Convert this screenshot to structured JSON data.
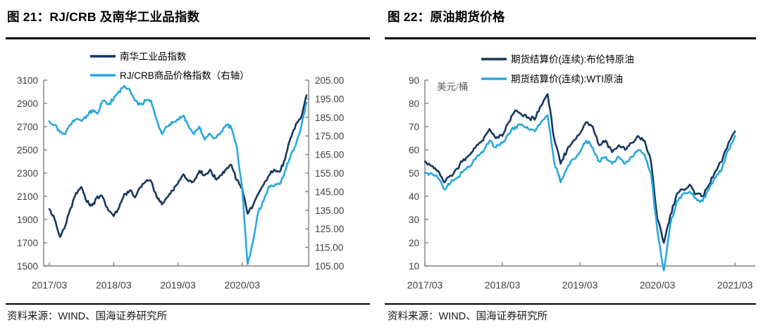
{
  "colors": {
    "navy": "#17375D",
    "blue": "#29A8E0",
    "axis": "#808080",
    "tick_text": "#404040",
    "rule": "#000000"
  },
  "chart_data": [
    {
      "type": "line",
      "title": "图 21：RJ/CRB 及南华工业品指数",
      "source": "资料来源：WIND、国海证券研究所",
      "x_tick_labels": [
        "2017/03",
        "2018/03",
        "2019/03",
        "2020/03"
      ],
      "x_range_months": "2017/03 - 2021/03",
      "grid": "off",
      "legend_position": "top-center",
      "left_axis": {
        "min": 1500,
        "max": 3100,
        "step": 200,
        "labels": [
          "3100",
          "2900",
          "2700",
          "2500",
          "2300",
          "2100",
          "1900",
          "1700",
          "1500"
        ]
      },
      "right_axis": {
        "min": 105,
        "max": 205,
        "step": 10,
        "labels": [
          "205.00",
          "195.00",
          "185.00",
          "175.00",
          "165.00",
          "155.00",
          "145.00",
          "135.00",
          "125.00",
          "115.00",
          "105.00"
        ]
      },
      "legend": [
        {
          "label": "南华工业品指数",
          "color": "navy"
        },
        {
          "label": "RJ/CRB商品价格指数（右轴）",
          "color": "blue"
        }
      ],
      "series": [
        {
          "name": "南华工业品指数",
          "axis": "left",
          "color": "navy",
          "values": [
            1990,
            1900,
            1750,
            1850,
            2000,
            2130,
            2180,
            2050,
            2020,
            2100,
            2090,
            1980,
            1930,
            2000,
            2120,
            2150,
            2090,
            2180,
            2230,
            2230,
            2100,
            2030,
            2090,
            2150,
            2210,
            2290,
            2230,
            2230,
            2320,
            2280,
            2330,
            2250,
            2280,
            2330,
            2370,
            2240,
            2170,
            1950,
            2020,
            2120,
            2200,
            2280,
            2330,
            2310,
            2420,
            2600,
            2720,
            2780,
            2970
          ]
        },
        {
          "name": "RJ/CRB商品价格指数（右轴）",
          "axis": "right",
          "color": "blue",
          "values": [
            183,
            181,
            177,
            176,
            181,
            184,
            183,
            186,
            189,
            187,
            194,
            192,
            195,
            199,
            202,
            200,
            194,
            192,
            194,
            194,
            184,
            176,
            180,
            182,
            184,
            186,
            180,
            176,
            180,
            173,
            176,
            174,
            177,
            181,
            179,
            169,
            146,
            106,
            118,
            134,
            140,
            148,
            148,
            149,
            156,
            164,
            170,
            180,
            193
          ]
        }
      ]
    },
    {
      "type": "line",
      "title": "图 22：原油期货价格",
      "source": "资料来源：WIND、国海证券研究所",
      "unit_label": "美元/桶",
      "x_tick_labels": [
        "2017/03",
        "2018/03",
        "2019/03",
        "2020/03",
        "2021/03"
      ],
      "x_range_months": "2017/03 - 2021/03",
      "grid": "off",
      "legend_position": "top-center",
      "y_axis": {
        "min": 10,
        "max": 90,
        "step": 10,
        "labels": [
          "90",
          "80",
          "70",
          "60",
          "50",
          "40",
          "30",
          "20",
          "10"
        ]
      },
      "legend": [
        {
          "label": "期货结算价(连续):布伦特原油",
          "color": "navy"
        },
        {
          "label": "期货结算价(连续):WTI原油",
          "color": "blue"
        }
      ],
      "series": [
        {
          "name": "期货结算价(连续):布伦特原油",
          "axis": "left",
          "color": "navy",
          "values": [
            55,
            53,
            51,
            46,
            49,
            52,
            56,
            58,
            62,
            64,
            69,
            65,
            66,
            72,
            77,
            75,
            74,
            73,
            79,
            84,
            65,
            54,
            60,
            64,
            67,
            72,
            70,
            62,
            64,
            59,
            62,
            60,
            63,
            66,
            64,
            55,
            30,
            20,
            32,
            41,
            43,
            45,
            41,
            40,
            45,
            51,
            55,
            63,
            68
          ]
        },
        {
          "name": "期货结算价(连续):WTI原油",
          "axis": "left",
          "color": "blue",
          "values": [
            50,
            50,
            48,
            43,
            46,
            48,
            51,
            53,
            57,
            59,
            64,
            61,
            63,
            67,
            70,
            71,
            69,
            68,
            72,
            75,
            55,
            46,
            52,
            56,
            59,
            64,
            61,
            55,
            57,
            54,
            57,
            54,
            57,
            60,
            58,
            50,
            25,
            8,
            28,
            38,
            41,
            42,
            39,
            38,
            43,
            48,
            52,
            60,
            66
          ]
        }
      ]
    }
  ]
}
